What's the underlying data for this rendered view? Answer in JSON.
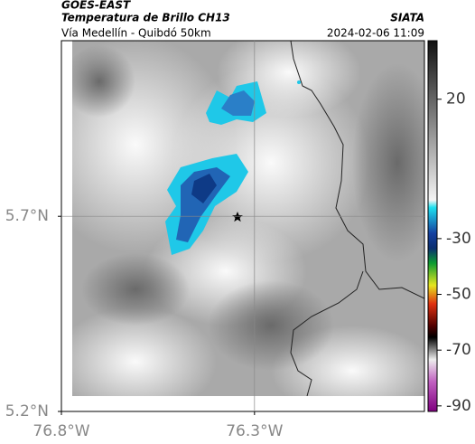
{
  "header": {
    "source": "GOES-EAST",
    "title": "Temperatura de Brillo CH13",
    "subtitle": "Vía Medellín - Quibdó 50km",
    "brand": "SIATA",
    "datetime": "2024-02-06 11:09"
  },
  "map": {
    "ylim": [
      5.2,
      6.15
    ],
    "xlim": [
      -76.8,
      -75.86
    ],
    "lat_ticks": [
      {
        "value": 5.7,
        "label": "5.7°N"
      },
      {
        "value": 5.2,
        "label": "5.2°N"
      }
    ],
    "lon_ticks": [
      {
        "value": -76.8,
        "label": "76.8°W"
      },
      {
        "value": -76.3,
        "label": "76.3°W"
      }
    ],
    "grid": true
  },
  "colorbar": {
    "lim": [
      41,
      -92
    ],
    "ticks": [
      20,
      -30,
      -50,
      -70,
      -90
    ]
  }
}
